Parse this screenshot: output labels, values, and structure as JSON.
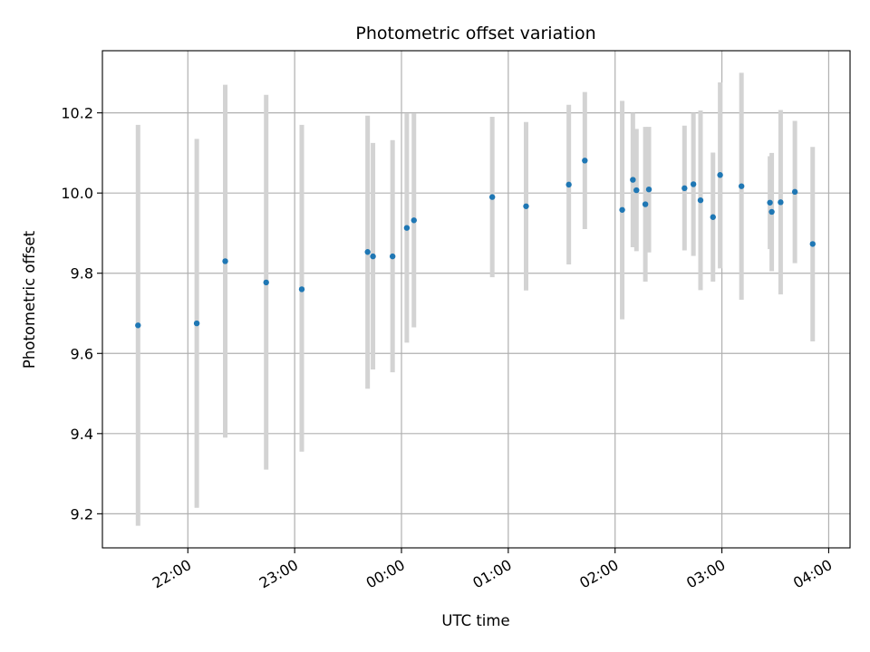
{
  "chart_data": {
    "type": "scatter",
    "title": "Photometric offset variation",
    "xlabel": "UTC time",
    "ylabel": "Photometric offset",
    "xlim": [
      "21:12",
      "04:12"
    ],
    "ylim": [
      9.115,
      10.355
    ],
    "x_ticks": [
      "22:00",
      "23:00",
      "00:00",
      "01:00",
      "02:00",
      "03:00",
      "04:00"
    ],
    "y_ticks": [
      9.2,
      9.4,
      9.6,
      9.8,
      10.0,
      10.2
    ],
    "y_tick_labels": [
      "9.2",
      "9.4",
      "9.6",
      "9.8",
      "10.0",
      "10.2"
    ],
    "grid": true,
    "colors": {
      "point": "#1f77b4",
      "errorbar": "#d3d3d3",
      "grid": "#b0b0b0",
      "axes": "#000000"
    },
    "series": [
      {
        "points": [
          {
            "t": "21:32",
            "y": 9.67,
            "lo": 9.17,
            "hi": 10.17
          },
          {
            "t": "22:05",
            "y": 9.675,
            "lo": 9.215,
            "hi": 10.135
          },
          {
            "t": "22:21",
            "y": 9.83,
            "lo": 9.39,
            "hi": 10.27
          },
          {
            "t": "22:44",
            "y": 9.777,
            "lo": 9.31,
            "hi": 10.245
          },
          {
            "t": "23:04",
            "y": 9.76,
            "lo": 9.355,
            "hi": 10.17
          },
          {
            "t": "23:41",
            "y": 9.853,
            "lo": 9.512,
            "hi": 10.193
          },
          {
            "t": "23:44",
            "y": 9.842,
            "lo": 9.56,
            "hi": 10.125
          },
          {
            "t": "23:55",
            "y": 9.842,
            "lo": 9.553,
            "hi": 10.132
          },
          {
            "t": "00:03",
            "y": 9.913,
            "lo": 9.627,
            "hi": 10.199
          },
          {
            "t": "00:07",
            "y": 9.932,
            "lo": 9.665,
            "hi": 10.199
          },
          {
            "t": "00:51",
            "y": 9.99,
            "lo": 9.79,
            "hi": 10.19
          },
          {
            "t": "01:10",
            "y": 9.967,
            "lo": 9.757,
            "hi": 10.177
          },
          {
            "t": "01:34",
            "y": 10.021,
            "lo": 9.822,
            "hi": 10.22
          },
          {
            "t": "01:43",
            "y": 10.081,
            "lo": 9.91,
            "hi": 10.252
          },
          {
            "t": "02:04",
            "y": 9.958,
            "lo": 9.685,
            "hi": 10.23
          },
          {
            "t": "02:10",
            "y": 10.033,
            "lo": 9.865,
            "hi": 10.2
          },
          {
            "t": "02:12",
            "y": 10.007,
            "lo": 9.855,
            "hi": 10.16
          },
          {
            "t": "02:17",
            "y": 9.972,
            "lo": 9.779,
            "hi": 10.165
          },
          {
            "t": "02:19",
            "y": 10.009,
            "lo": 9.852,
            "hi": 10.165
          },
          {
            "t": "02:39",
            "y": 10.012,
            "lo": 9.857,
            "hi": 10.168
          },
          {
            "t": "02:44",
            "y": 10.022,
            "lo": 9.843,
            "hi": 10.2
          },
          {
            "t": "02:48",
            "y": 9.982,
            "lo": 9.758,
            "hi": 10.206
          },
          {
            "t": "02:55",
            "y": 9.94,
            "lo": 9.779,
            "hi": 10.101
          },
          {
            "t": "02:59",
            "y": 10.045,
            "lo": 9.812,
            "hi": 10.276
          },
          {
            "t": "03:11",
            "y": 10.017,
            "lo": 9.734,
            "hi": 10.3
          },
          {
            "t": "03:27",
            "y": 9.976,
            "lo": 9.86,
            "hi": 10.092
          },
          {
            "t": "03:28",
            "y": 9.953,
            "lo": 9.805,
            "hi": 10.1
          },
          {
            "t": "03:33",
            "y": 9.977,
            "lo": 9.747,
            "hi": 10.207
          },
          {
            "t": "03:41",
            "y": 10.003,
            "lo": 9.825,
            "hi": 10.18
          },
          {
            "t": "03:51",
            "y": 9.873,
            "lo": 9.63,
            "hi": 10.115
          }
        ]
      }
    ]
  }
}
